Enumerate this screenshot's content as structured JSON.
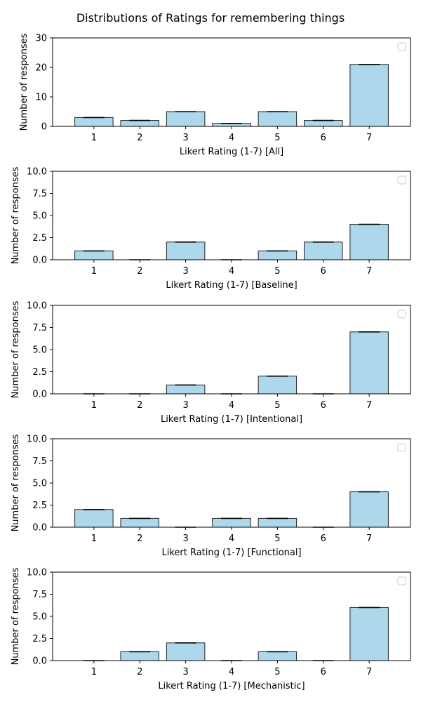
{
  "figure": {
    "title": "Distributions of Ratings for remembering things"
  },
  "chart_data": [
    {
      "type": "bar",
      "categories": [
        "1",
        "2",
        "3",
        "4",
        "5",
        "6",
        "7"
      ],
      "values": [
        3,
        2,
        5,
        1,
        5,
        2,
        21
      ],
      "xlabel": "Likert Rating (1-7) [All]",
      "ylabel": "Number of responses",
      "ylim": [
        0,
        30
      ],
      "yticks": [
        "0",
        "10",
        "20",
        "30"
      ],
      "legend": "top-right (empty)",
      "grid": false,
      "bar_color": "#add8eb"
    },
    {
      "type": "bar",
      "categories": [
        "1",
        "2",
        "3",
        "4",
        "5",
        "6",
        "7"
      ],
      "values": [
        1,
        0,
        2,
        0,
        1,
        2,
        4
      ],
      "xlabel": "Likert Rating (1-7) [Baseline]",
      "ylabel": "Number of responses",
      "ylim": [
        0,
        10
      ],
      "yticks": [
        "0.0",
        "2.5",
        "5.0",
        "7.5",
        "10.0"
      ],
      "legend": "top-right (empty)",
      "grid": false,
      "bar_color": "#add8eb"
    },
    {
      "type": "bar",
      "categories": [
        "1",
        "2",
        "3",
        "4",
        "5",
        "6",
        "7"
      ],
      "values": [
        0,
        0,
        1,
        0,
        2,
        0,
        7
      ],
      "xlabel": "Likert Rating (1-7) [Intentional]",
      "ylabel": "Number of responses",
      "ylim": [
        0,
        10
      ],
      "yticks": [
        "0.0",
        "2.5",
        "5.0",
        "7.5",
        "10.0"
      ],
      "legend": "top-right (empty)",
      "grid": false,
      "bar_color": "#add8eb"
    },
    {
      "type": "bar",
      "categories": [
        "1",
        "2",
        "3",
        "4",
        "5",
        "6",
        "7"
      ],
      "values": [
        2,
        1,
        0,
        1,
        1,
        0,
        4
      ],
      "xlabel": "Likert Rating (1-7) [Functional]",
      "ylabel": "Number of responses",
      "ylim": [
        0,
        10
      ],
      "yticks": [
        "0.0",
        "2.5",
        "5.0",
        "7.5",
        "10.0"
      ],
      "legend": "top-right (empty)",
      "grid": false,
      "bar_color": "#add8eb"
    },
    {
      "type": "bar",
      "categories": [
        "1",
        "2",
        "3",
        "4",
        "5",
        "6",
        "7"
      ],
      "values": [
        0,
        1,
        2,
        0,
        1,
        0,
        6
      ],
      "xlabel": "Likert Rating (1-7) [Mechanistic]",
      "ylabel": "Number of responses",
      "ylim": [
        0,
        10
      ],
      "yticks": [
        "0.0",
        "2.5",
        "5.0",
        "7.5",
        "10.0"
      ],
      "legend": "top-right (empty)",
      "grid": false,
      "bar_color": "#add8eb"
    }
  ]
}
